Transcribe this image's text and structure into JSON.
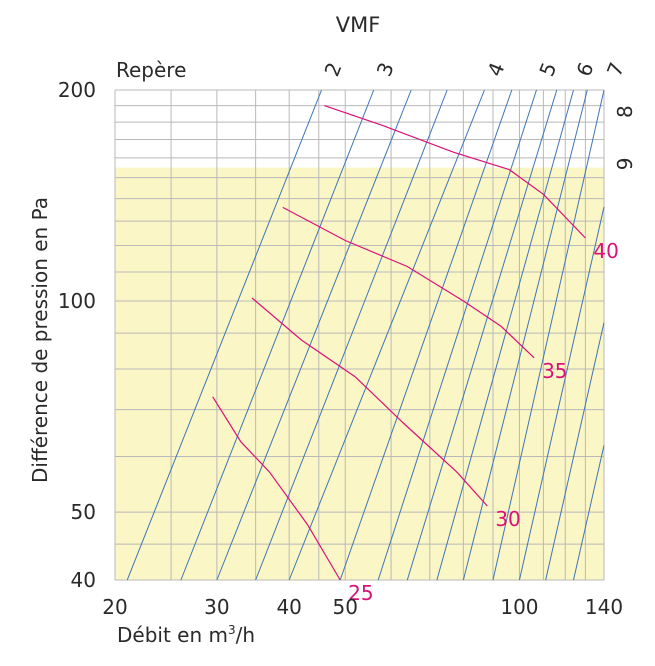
{
  "chart_data": {
    "type": "line",
    "title": "VMF",
    "repere_label": "Repère",
    "xlabel": "Débit en m³/h",
    "xlabel_main": "Débit en m",
    "xlabel_sup": "3",
    "xlabel_tail": "/h",
    "ylabel": "Différence de pression en Pa",
    "x_scale": "log",
    "y_scale": "log",
    "xlim": [
      20,
      140
    ],
    "ylim": [
      40,
      200
    ],
    "x_tick_labels": [
      "20",
      "30",
      "40",
      "50",
      "100",
      "140"
    ],
    "x_ticks": [
      20,
      30,
      40,
      50,
      100,
      140
    ],
    "x_grid": [
      20,
      25,
      30,
      35,
      40,
      45,
      50,
      60,
      70,
      80,
      90,
      100,
      110,
      120,
      130,
      140
    ],
    "y_tick_labels": [
      "200",
      "100",
      "50",
      "40"
    ],
    "y_ticks": [
      200,
      100,
      50,
      40
    ],
    "y_grid": [
      40,
      45,
      50,
      60,
      70,
      80,
      90,
      100,
      110,
      120,
      130,
      140,
      150,
      160,
      170,
      180,
      190,
      200
    ],
    "shaded_region": {
      "y_max": 155,
      "color": "#fbf6c5"
    },
    "grid_color": "#b9b9b9",
    "repere_line_color": "#3f75b7",
    "series_color": "#d9117a",
    "repere_lines": [
      {
        "label": "2",
        "x_at_ymin": 21,
        "x_at_ymax": 45.5,
        "show_label": true
      },
      {
        "label": "3",
        "x_at_ymin": 26,
        "x_at_ymax": 56,
        "show_label": true
      },
      {
        "label": "",
        "x_at_ymin": 30,
        "x_at_ymax": 65,
        "show_label": false
      },
      {
        "label": "",
        "x_at_ymin": 35,
        "x_at_ymax": 75,
        "show_label": false
      },
      {
        "label": "4",
        "x_at_ymin": 40,
        "x_at_ymax": 87,
        "show_label": true
      },
      {
        "label": "",
        "x_at_ymin": 49,
        "x_at_ymax": 97,
        "show_label": false
      },
      {
        "label": "5",
        "x_at_ymin": 57,
        "x_at_ymax": 107,
        "show_label": true
      },
      {
        "label": "",
        "x_at_ymin": 64,
        "x_at_ymax": 116,
        "show_label": false
      },
      {
        "label": "6",
        "x_at_ymin": 72,
        "x_at_ymax": 124,
        "show_label": true
      },
      {
        "label": "",
        "x_at_ymin": 80,
        "x_at_ymax": 131,
        "show_label": false
      },
      {
        "label": "7",
        "x_at_ymin": 90,
        "x_at_ymax": 140,
        "show_label": true
      },
      {
        "label": "",
        "x_at_ymin": 100,
        "x_at_ymax": 140,
        "show_label": false
      },
      {
        "label": "",
        "x_at_ymin": 111,
        "x_at_ymax": 140,
        "show_label": false
      },
      {
        "label": "",
        "x_at_ymin": 124,
        "x_at_ymax": 140,
        "show_label": false
      }
    ],
    "right_labels": [
      {
        "label": "8",
        "y": 190
      },
      {
        "label": "9",
        "y": 160
      }
    ],
    "series": [
      {
        "name": "25",
        "points": [
          [
            29.5,
            73
          ],
          [
            33,
            63
          ],
          [
            37,
            57
          ],
          [
            43,
            48
          ],
          [
            49,
            40
          ]
        ]
      },
      {
        "name": "30",
        "points": [
          [
            34.5,
            101
          ],
          [
            42,
            88
          ],
          [
            52,
            78
          ],
          [
            63,
            67
          ],
          [
            78,
            57
          ],
          [
            88,
            51
          ]
        ]
      },
      {
        "name": "35",
        "points": [
          [
            39,
            136
          ],
          [
            50,
            122
          ],
          [
            64,
            112
          ],
          [
            80,
            100
          ],
          [
            93,
            92
          ],
          [
            106,
            83
          ]
        ]
      },
      {
        "name": "40",
        "points": [
          [
            46,
            190
          ],
          [
            58,
            178
          ],
          [
            77,
            163
          ],
          [
            96,
            154
          ],
          [
            110,
            142
          ],
          [
            130,
            123
          ]
        ]
      }
    ]
  }
}
